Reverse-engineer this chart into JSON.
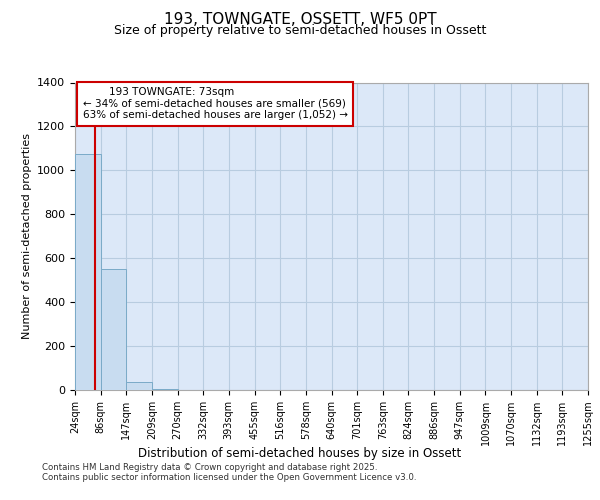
{
  "title1": "193, TOWNGATE, OSSETT, WF5 0PT",
  "title2": "Size of property relative to semi-detached houses in Ossett",
  "xlabel": "Distribution of semi-detached houses by size in Ossett",
  "ylabel": "Number of semi-detached properties",
  "footer1": "Contains HM Land Registry data © Crown copyright and database right 2025.",
  "footer2": "Contains public sector information licensed under the Open Government Licence v3.0.",
  "bin_labels": [
    "24sqm",
    "86sqm",
    "147sqm",
    "209sqm",
    "270sqm",
    "332sqm",
    "393sqm",
    "455sqm",
    "516sqm",
    "578sqm",
    "640sqm",
    "701sqm",
    "763sqm",
    "824sqm",
    "886sqm",
    "947sqm",
    "1009sqm",
    "1070sqm",
    "1132sqm",
    "1193sqm",
    "1255sqm"
  ],
  "bin_edges": [
    24,
    86,
    147,
    209,
    270,
    332,
    393,
    455,
    516,
    578,
    640,
    701,
    763,
    824,
    886,
    947,
    1009,
    1070,
    1132,
    1193,
    1255
  ],
  "bar_heights": [
    1075,
    550,
    35,
    5,
    1,
    0,
    0,
    0,
    0,
    0,
    0,
    0,
    0,
    0,
    0,
    0,
    0,
    0,
    0,
    0
  ],
  "bar_facecolor": "#c8dcf0",
  "bar_edgecolor": "#7aaac8",
  "property_size": 73,
  "annotation_title": "193 TOWNGATE: 73sqm",
  "annotation_line1": "← 34% of semi-detached houses are smaller (569)",
  "annotation_line2": "63% of semi-detached houses are larger (1,052) →",
  "vline_color": "#cc0000",
  "annotation_box_edgecolor": "#cc0000",
  "ylim": [
    0,
    1400
  ],
  "page_background": "#ffffff",
  "plot_background": "#dce8f8",
  "grid_color": "#b8cce0"
}
